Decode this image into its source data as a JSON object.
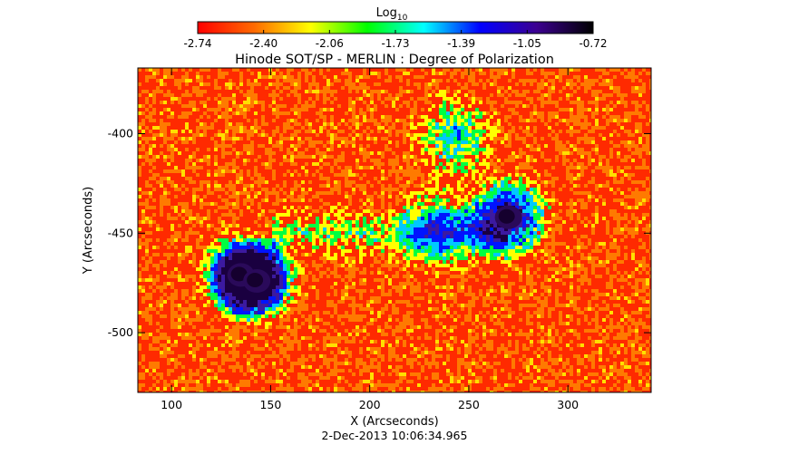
{
  "chart_data": {
    "type": "heatmap",
    "title": "Hinode SOT/SP - MERLIN : Degree of Polarization",
    "colorbar": {
      "label_base": "Log",
      "label_sub": "10",
      "ticks": [
        "-2.74",
        "-2.40",
        "-2.06",
        "-1.73",
        "-1.39",
        "-1.05",
        "-0.72"
      ],
      "range": [
        -2.74,
        -0.72
      ],
      "colormap": [
        "#ff0000",
        "#ff6a00",
        "#ffff00",
        "#00ff00",
        "#00ffff",
        "#0000ff",
        "#3c0090",
        "#000000"
      ]
    },
    "xlabel": "X (Arcseconds)",
    "ylabel": "Y (Arcseconds)",
    "xlim": [
      83,
      342
    ],
    "ylim": [
      -530,
      -367
    ],
    "xticks": [
      100,
      150,
      200,
      250,
      300
    ],
    "yticks": [
      -400,
      -450,
      -500
    ],
    "xtick_labels": [
      "100",
      "150",
      "200",
      "250",
      "300"
    ],
    "ytick_labels": [
      "-400",
      "-450",
      "-500"
    ],
    "features": [
      {
        "kind": "sunspot",
        "x": 270,
        "y": -442,
        "value": -0.72
      },
      {
        "kind": "sunspot",
        "x": 135,
        "y": -471,
        "value": -0.72
      },
      {
        "kind": "sunspot",
        "x": 143,
        "y": -474,
        "value": -0.72
      },
      {
        "kind": "plage",
        "x": 235,
        "y": -447,
        "value": -1.2
      },
      {
        "kind": "plage",
        "x": 243,
        "y": -402,
        "value": -1.4
      }
    ],
    "timestamp": "2-Dec-2013 10:06:34.965"
  }
}
